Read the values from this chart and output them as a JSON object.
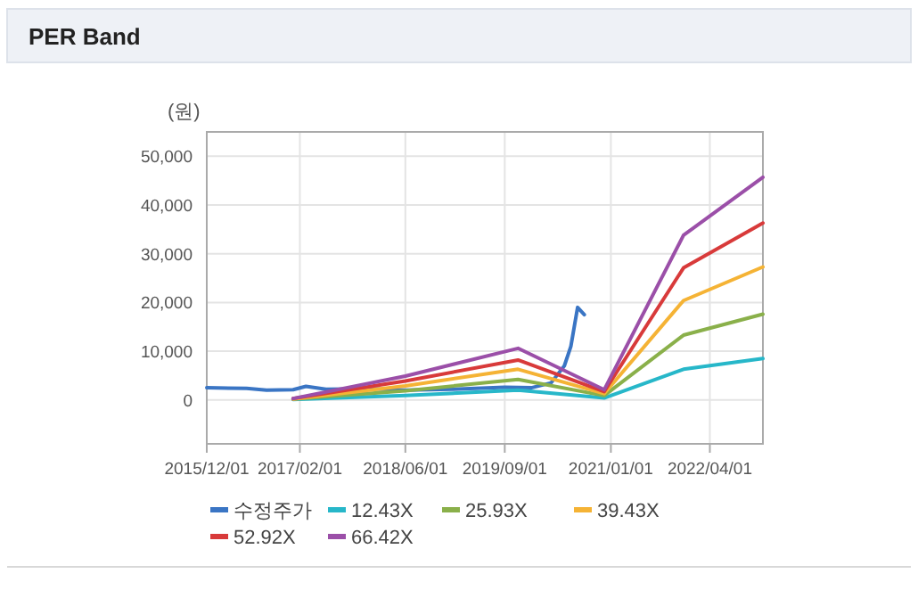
{
  "chart_data": {
    "type": "line",
    "title": "PER Band",
    "ylabel": "(원)",
    "grid": true,
    "legend": "bottom",
    "xlim": [
      "2015-12-01",
      "2022-12-01"
    ],
    "xticks": [
      {
        "value": "2015-12-01",
        "label": "2015/12/01"
      },
      {
        "value": "2017-02-01",
        "label": "2017/02/01"
      },
      {
        "value": "2018-06-01",
        "label": "2018/06/01"
      },
      {
        "value": "2019-09-01",
        "label": "2019/09/01"
      },
      {
        "value": "2021-01-01",
        "label": "2021/01/01"
      },
      {
        "value": "2022-04-01",
        "label": "2022/04/01"
      }
    ],
    "ylim": [
      -9000,
      55000
    ],
    "yticks": [
      0,
      {
        "value": 10000,
        "label": "10,000"
      },
      {
        "value": 20000,
        "label": "20,000"
      },
      {
        "value": 30000,
        "label": "30,000"
      },
      {
        "value": 40000,
        "label": "40,000"
      },
      {
        "value": 50000,
        "label": "50,000"
      }
    ],
    "series": [
      {
        "name": "수정주가",
        "color": "#3a75c4",
        "x": [
          "2015-12-01",
          "2016-06-01",
          "2016-09-01",
          "2017-01-01",
          "2017-03-01",
          "2017-06-01",
          "2018-01-01",
          "2018-06-01",
          "2019-01-01",
          "2019-09-01",
          "2020-01-01",
          "2020-04-01",
          "2020-06-01",
          "2020-07-01",
          "2020-08-01",
          "2020-09-01"
        ],
        "values": [
          2500,
          2400,
          2000,
          2100,
          2800,
          2200,
          2300,
          2000,
          2200,
          2600,
          2500,
          3500,
          7000,
          11000,
          19000,
          17500
        ]
      },
      {
        "name": "12.43X",
        "color": "#27b7c9",
        "x": [
          "2017-01-01",
          "2018-06-01",
          "2019-11-01",
          "2020-12-01",
          "2021-12-01",
          "2022-12-01"
        ],
        "values": [
          100,
          900,
          2000,
          400,
          6300,
          8500
        ]
      },
      {
        "name": "25.93X",
        "color": "#8ab04a",
        "x": [
          "2017-01-01",
          "2018-06-01",
          "2019-11-01",
          "2020-12-01",
          "2021-12-01",
          "2022-12-01"
        ],
        "values": [
          200,
          1900,
          4200,
          900,
          13300,
          17600
        ]
      },
      {
        "name": "39.43X",
        "color": "#f5b335",
        "x": [
          "2017-01-01",
          "2018-06-01",
          "2019-11-01",
          "2020-12-01",
          "2021-12-01",
          "2022-12-01"
        ],
        "values": [
          200,
          2900,
          6300,
          1300,
          20400,
          27300
        ]
      },
      {
        "name": "52.92X",
        "color": "#d83a3a",
        "x": [
          "2017-01-01",
          "2018-06-01",
          "2019-11-01",
          "2020-12-01",
          "2021-12-01",
          "2022-12-01"
        ],
        "values": [
          300,
          3900,
          8200,
          1700,
          27100,
          36300
        ]
      },
      {
        "name": "66.42X",
        "color": "#9b4fa8",
        "x": [
          "2017-01-01",
          "2018-06-01",
          "2019-11-01",
          "2020-12-01",
          "2021-12-01",
          "2022-12-01"
        ],
        "values": [
          300,
          4900,
          10600,
          2100,
          33800,
          45700
        ]
      }
    ]
  }
}
